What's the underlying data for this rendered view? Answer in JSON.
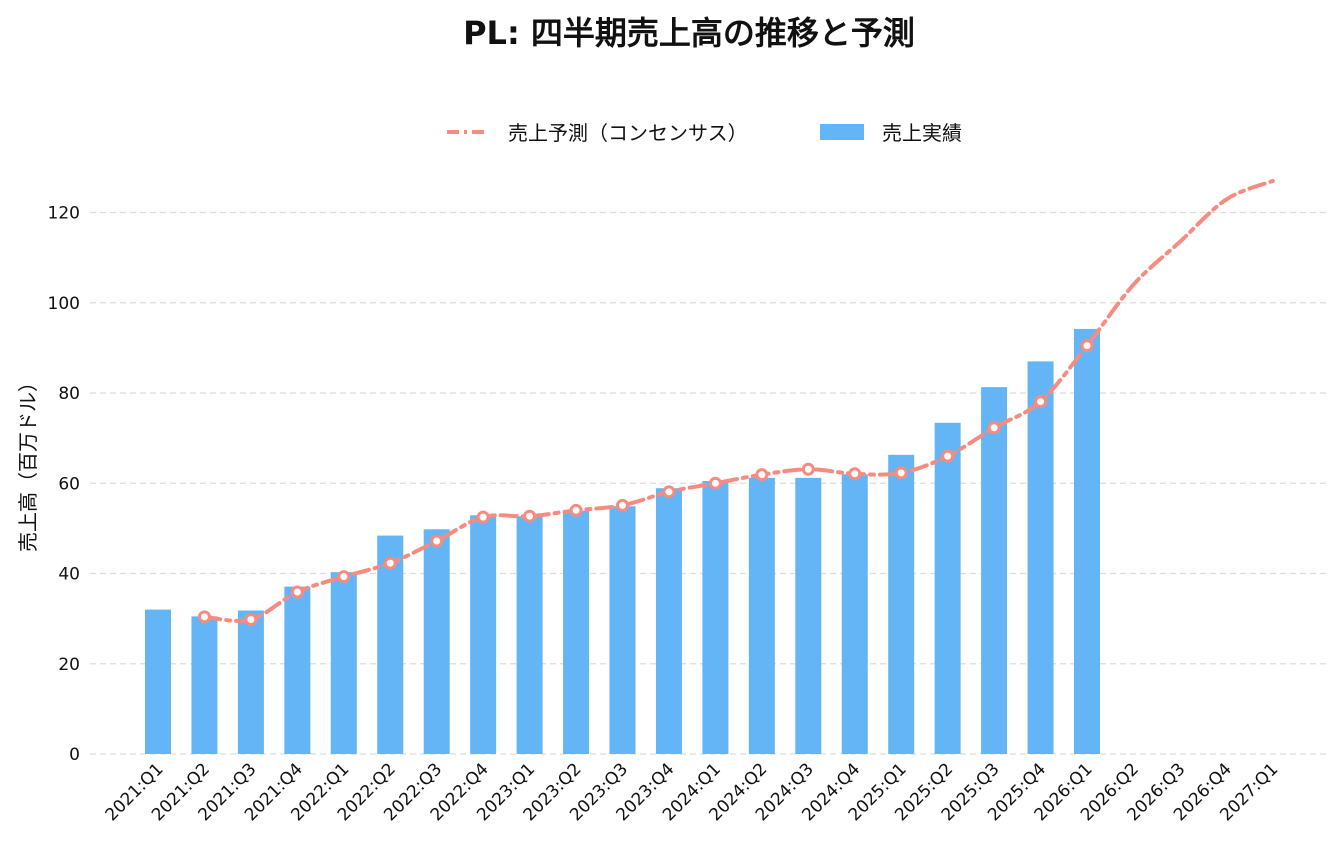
{
  "chart_data": {
    "type": "bar",
    "title": "PL: 四半期売上高の推移と予測",
    "xlabel": "",
    "ylabel": "売上高（百万ドル）",
    "ylim": [
      0,
      128
    ],
    "yticks": [
      0,
      20,
      40,
      60,
      80,
      100,
      120
    ],
    "grid": "horizontal-dashed",
    "legend_placement": "top-center",
    "categories": [
      "2021:Q1",
      "2021:Q2",
      "2021:Q3",
      "2021:Q4",
      "2022:Q1",
      "2022:Q2",
      "2022:Q3",
      "2022:Q4",
      "2023:Q1",
      "2023:Q2",
      "2023:Q3",
      "2023:Q4",
      "2024:Q1",
      "2024:Q2",
      "2024:Q3",
      "2024:Q4",
      "2025:Q1",
      "2025:Q2",
      "2025:Q3",
      "2025:Q4",
      "2026:Q1",
      "2026:Q2",
      "2026:Q3",
      "2026:Q4",
      "2027:Q1"
    ],
    "series": [
      {
        "name": "売上予測（コンセンサス）",
        "type": "line",
        "style": "dash-dot",
        "color": "#f78b7f",
        "values": [
          null,
          30.4,
          29.8,
          35.9,
          39.3,
          42.3,
          47.2,
          52.5,
          52.7,
          54.0,
          55.1,
          58.1,
          60.0,
          61.9,
          63.1,
          62.1,
          62.3,
          66.0,
          72.3,
          78.1,
          90.5,
          104.0,
          113.5,
          122.9,
          127.0
        ]
      },
      {
        "name": "売上実績",
        "type": "bar",
        "color": "#64b5f6",
        "values": [
          32.0,
          30.5,
          31.8,
          37.1,
          40.3,
          48.4,
          49.8,
          52.9,
          52.7,
          53.9,
          54.9,
          58.9,
          60.5,
          61.2,
          61.2,
          62.0,
          66.3,
          73.4,
          81.3,
          87.0,
          94.2,
          null,
          null,
          null,
          null
        ]
      }
    ],
    "marker_style": {
      "fill": "#ffffff",
      "stroke": "#f78b7f"
    }
  }
}
